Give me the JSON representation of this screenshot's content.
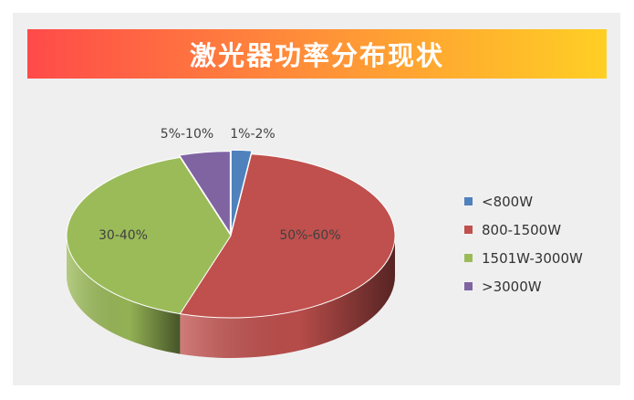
{
  "chart_data": {
    "type": "pie",
    "title": "激光器功率分布现状",
    "series": [
      {
        "name": "<800W",
        "value": 2,
        "label": "1%-2%",
        "color": "#4f81bd"
      },
      {
        "name": "800-1500W",
        "value": 53,
        "label": "50%-60%",
        "color": "#c0504d"
      },
      {
        "name": "1501W-3000W",
        "value": 40,
        "label": "30-40%",
        "color": "#9bbb59"
      },
      {
        "name": ">3000W",
        "value": 5,
        "label": "5%-10%",
        "color": "#8064a2"
      }
    ],
    "legend_position": "right",
    "style": "3d"
  }
}
